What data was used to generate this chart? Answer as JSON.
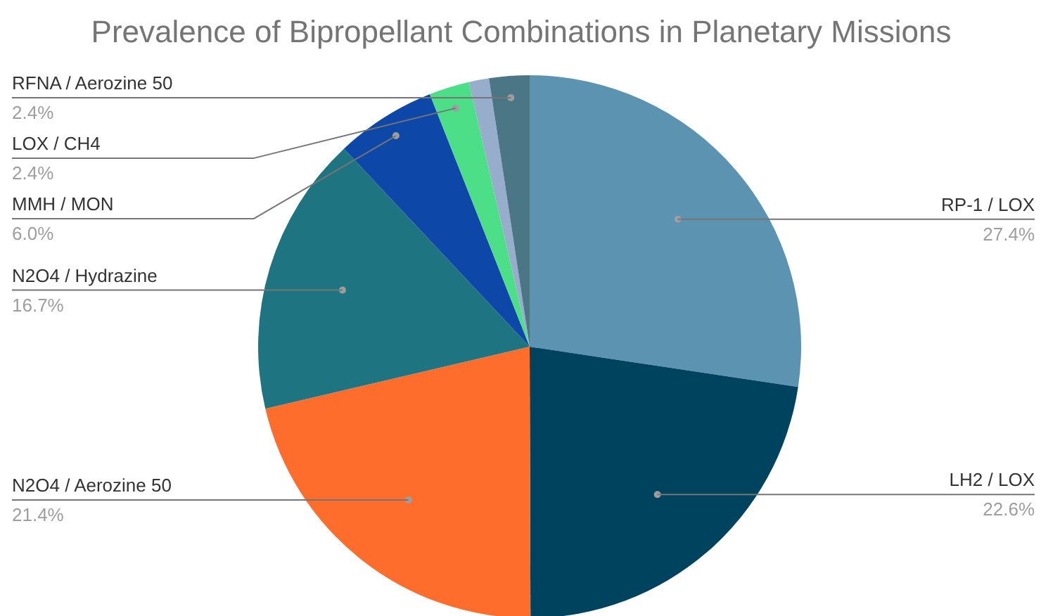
{
  "chart_data": {
    "type": "pie",
    "title": "Prevalence of Bipropellant Combinations in Planetary Missions",
    "categories": [
      "RP-1 / LOX",
      "LH2 / LOX",
      "N2O4 / Aerozine 50",
      "N2O4 / Hydrazine",
      "MMH / MON",
      "LOX / CH4",
      null,
      "RFNA / Aerozine 50"
    ],
    "values": [
      27.4,
      22.6,
      21.4,
      16.7,
      6.0,
      2.4,
      1.2,
      2.4
    ],
    "colors": [
      "#5b93b0",
      "#00435e",
      "#ff6d2d",
      "#1f7482",
      "#0d47a8",
      "#4cdf88",
      "#96aecb",
      "#4a7686"
    ],
    "value_labels": [
      "27.4%",
      "22.6%",
      "21.4%",
      "16.7%",
      "6.0%",
      "2.4%",
      null,
      "2.4%"
    ]
  }
}
